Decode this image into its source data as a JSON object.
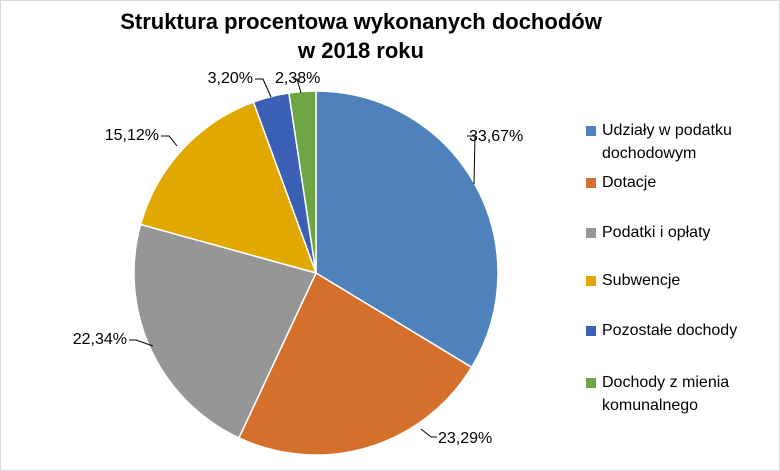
{
  "chart_data": {
    "type": "pie",
    "title": [
      "Struktura procentowa wykonanych dochodów",
      "w 2018 roku"
    ],
    "categories": [
      "Udziały w podatku dochodowym",
      "Dotacje",
      "Podatki i opłaty",
      "Subwencje",
      "Pozostałe dochody",
      "Dochody z mienia komunalnego"
    ],
    "values": [
      33.67,
      23.29,
      22.34,
      15.12,
      3.2,
      2.38
    ],
    "data_labels": [
      "33,67%",
      "23,29%",
      "22,34%",
      "15,12%",
      "3,20%",
      "2,38%"
    ],
    "colors": [
      "#4f81bd",
      "#d4702c",
      "#969696",
      "#e1a900",
      "#3a5fb4",
      "#6da544"
    ],
    "legend_position": "right",
    "legend": {
      "items": [
        {
          "lines": [
            "Udziały w podatku",
            "dochodowym"
          ]
        },
        {
          "lines": [
            "Dotacje"
          ]
        },
        {
          "lines": [
            "Podatki i opłaty"
          ]
        },
        {
          "lines": [
            "Subwencje"
          ]
        },
        {
          "lines": [
            "Pozostałe dochody"
          ]
        },
        {
          "lines": [
            "Dochody z mienia",
            "komunalnego"
          ]
        }
      ]
    }
  }
}
